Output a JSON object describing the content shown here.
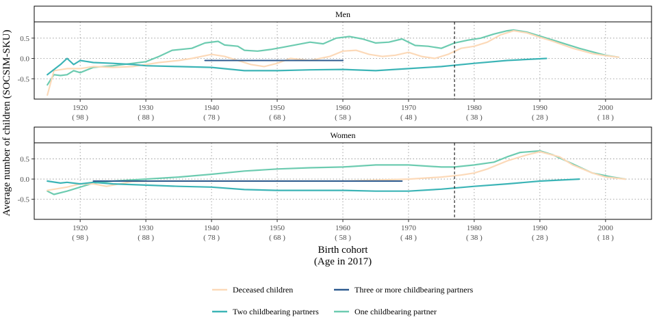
{
  "chart_data": {
    "type": "line",
    "ylabel": "Average number of children (SOCSIM-SKU)",
    "xlabel_line1": "Birth cohort",
    "xlabel_line2": "(Age in 2017)",
    "xlim": [
      1913,
      2007
    ],
    "ylim": [
      -1.0,
      0.9
    ],
    "yticks": [
      {
        "value": 0.5,
        "label": "0.5"
      },
      {
        "value": 0.0,
        "label": "0.0"
      },
      {
        "value": -0.5,
        "label": "-0.5"
      }
    ],
    "xticks": [
      {
        "value": 1920,
        "year": "1920",
        "age": "( 98 )"
      },
      {
        "value": 1930,
        "year": "1930",
        "age": "( 88 )"
      },
      {
        "value": 1940,
        "year": "1940",
        "age": "( 78 )"
      },
      {
        "value": 1950,
        "year": "1950",
        "age": "( 68 )"
      },
      {
        "value": 1960,
        "year": "1960",
        "age": "( 58 )"
      },
      {
        "value": 1970,
        "year": "1970",
        "age": "( 48 )"
      },
      {
        "value": 1980,
        "year": "1980",
        "age": "( 38 )"
      },
      {
        "value": 1990,
        "year": "1990",
        "age": "( 28 )"
      },
      {
        "value": 2000,
        "year": "2000",
        "age": "( 18 )"
      }
    ],
    "grid": true,
    "legend_position": "bottom",
    "legend": [
      {
        "key": "deceased",
        "label": "Deceased children",
        "color": "#fcd9b8"
      },
      {
        "key": "three",
        "label": "Three or more childbearing partners",
        "color": "#2c5a8f"
      },
      {
        "key": "two",
        "label": "Two childbearing partners",
        "color": "#3bb4b6"
      },
      {
        "key": "one",
        "label": "One childbearing partner",
        "color": "#6ccbb0"
      }
    ],
    "panels": [
      {
        "title": "Men",
        "vline": 1977,
        "series": [
          {
            "key": "one",
            "points": [
              [
                1915,
                -0.65
              ],
              [
                1916,
                -0.4
              ],
              [
                1917,
                -0.42
              ],
              [
                1918,
                -0.4
              ],
              [
                1919,
                -0.3
              ],
              [
                1920,
                -0.35
              ],
              [
                1922,
                -0.22
              ],
              [
                1925,
                -0.18
              ],
              [
                1928,
                -0.12
              ],
              [
                1930,
                -0.08
              ],
              [
                1932,
                0.05
              ],
              [
                1934,
                0.2
              ],
              [
                1937,
                0.25
              ],
              [
                1939,
                0.38
              ],
              [
                1941,
                0.42
              ],
              [
                1942,
                0.33
              ],
              [
                1944,
                0.3
              ],
              [
                1945,
                0.2
              ],
              [
                1947,
                0.18
              ],
              [
                1949,
                0.22
              ],
              [
                1951,
                0.28
              ],
              [
                1953,
                0.34
              ],
              [
                1955,
                0.4
              ],
              [
                1957,
                0.36
              ],
              [
                1959,
                0.5
              ],
              [
                1961,
                0.54
              ],
              [
                1963,
                0.48
              ],
              [
                1965,
                0.38
              ],
              [
                1967,
                0.4
              ],
              [
                1969,
                0.48
              ],
              [
                1971,
                0.32
              ],
              [
                1973,
                0.3
              ],
              [
                1975,
                0.25
              ],
              [
                1977,
                0.38
              ],
              [
                1979,
                0.45
              ],
              [
                1981,
                0.5
              ],
              [
                1983,
                0.6
              ],
              [
                1985,
                0.68
              ],
              [
                1986,
                0.7
              ],
              [
                1988,
                0.65
              ],
              [
                1990,
                0.55
              ],
              [
                1993,
                0.4
              ],
              [
                1996,
                0.25
              ],
              [
                1999,
                0.12
              ],
              [
                2000,
                0.08
              ],
              [
                2002,
                0.03
              ]
            ]
          },
          {
            "key": "deceased",
            "points": [
              [
                1915,
                -0.9
              ],
              [
                1916,
                -0.3
              ],
              [
                1918,
                -0.25
              ],
              [
                1920,
                -0.25
              ],
              [
                1922,
                -0.2
              ],
              [
                1925,
                -0.22
              ],
              [
                1928,
                -0.2
              ],
              [
                1930,
                -0.15
              ],
              [
                1932,
                -0.1
              ],
              [
                1935,
                -0.05
              ],
              [
                1937,
                0.0
              ],
              [
                1940,
                0.1
              ],
              [
                1942,
                0.05
              ],
              [
                1944,
                -0.05
              ],
              [
                1946,
                -0.15
              ],
              [
                1948,
                -0.2
              ],
              [
                1950,
                -0.12
              ],
              [
                1952,
                0.0
              ],
              [
                1955,
                -0.05
              ],
              [
                1958,
                0.05
              ],
              [
                1960,
                0.18
              ],
              [
                1962,
                0.2
              ],
              [
                1964,
                0.1
              ],
              [
                1966,
                0.05
              ],
              [
                1968,
                0.08
              ],
              [
                1970,
                0.15
              ],
              [
                1972,
                0.05
              ],
              [
                1974,
                0.0
              ],
              [
                1976,
                0.1
              ],
              [
                1978,
                0.25
              ],
              [
                1980,
                0.3
              ],
              [
                1982,
                0.4
              ],
              [
                1984,
                0.58
              ],
              [
                1986,
                0.68
              ],
              [
                1988,
                0.63
              ],
              [
                1990,
                0.52
              ],
              [
                1992,
                0.42
              ],
              [
                1995,
                0.25
              ],
              [
                1998,
                0.12
              ],
              [
                2000,
                0.07
              ],
              [
                2002,
                0.03
              ]
            ]
          },
          {
            "key": "two",
            "points": [
              [
                1915,
                -0.4
              ],
              [
                1917,
                -0.15
              ],
              [
                1918,
                0.0
              ],
              [
                1919,
                -0.15
              ],
              [
                1920,
                -0.05
              ],
              [
                1922,
                -0.1
              ],
              [
                1925,
                -0.12
              ],
              [
                1928,
                -0.15
              ],
              [
                1930,
                -0.18
              ],
              [
                1935,
                -0.2
              ],
              [
                1940,
                -0.22
              ],
              [
                1945,
                -0.3
              ],
              [
                1950,
                -0.3
              ],
              [
                1955,
                -0.28
              ],
              [
                1960,
                -0.27
              ],
              [
                1965,
                -0.3
              ],
              [
                1970,
                -0.25
              ],
              [
                1975,
                -0.2
              ],
              [
                1980,
                -0.12
              ],
              [
                1985,
                -0.05
              ],
              [
                1991,
                0.0
              ]
            ]
          },
          {
            "key": "three",
            "points": [
              [
                1939,
                -0.05
              ],
              [
                1960,
                -0.05
              ]
            ]
          }
        ]
      },
      {
        "title": "Women",
        "vline": 1977,
        "series": [
          {
            "key": "one",
            "points": [
              [
                1915,
                -0.3
              ],
              [
                1916,
                -0.38
              ],
              [
                1918,
                -0.3
              ],
              [
                1920,
                -0.2
              ],
              [
                1922,
                -0.1
              ],
              [
                1925,
                -0.05
              ],
              [
                1930,
                0.0
              ],
              [
                1935,
                0.05
              ],
              [
                1940,
                0.12
              ],
              [
                1945,
                0.2
              ],
              [
                1950,
                0.25
              ],
              [
                1955,
                0.28
              ],
              [
                1960,
                0.3
              ],
              [
                1965,
                0.35
              ],
              [
                1970,
                0.35
              ],
              [
                1975,
                0.3
              ],
              [
                1977,
                0.3
              ],
              [
                1980,
                0.35
              ],
              [
                1983,
                0.42
              ],
              [
                1985,
                0.55
              ],
              [
                1987,
                0.66
              ],
              [
                1990,
                0.7
              ],
              [
                1992,
                0.6
              ],
              [
                1994,
                0.45
              ],
              [
                1996,
                0.3
              ],
              [
                1998,
                0.15
              ],
              [
                2001,
                0.05
              ],
              [
                2003,
                0.0
              ]
            ]
          },
          {
            "key": "deceased",
            "points": [
              [
                1915,
                -0.28
              ],
              [
                1918,
                -0.2
              ],
              [
                1920,
                -0.12
              ],
              [
                1922,
                -0.12
              ],
              [
                1924,
                -0.18
              ],
              [
                1926,
                -0.12
              ],
              [
                1928,
                -0.06
              ],
              [
                1932,
                -0.05
              ],
              [
                1940,
                -0.05
              ],
              [
                1950,
                -0.05
              ],
              [
                1960,
                -0.05
              ],
              [
                1970,
                0.0
              ],
              [
                1975,
                0.05
              ],
              [
                1978,
                0.1
              ],
              [
                1980,
                0.15
              ],
              [
                1982,
                0.25
              ],
              [
                1985,
                0.45
              ],
              [
                1988,
                0.6
              ],
              [
                1990,
                0.68
              ],
              [
                1993,
                0.55
              ],
              [
                1995,
                0.35
              ],
              [
                1998,
                0.15
              ],
              [
                2000,
                0.05
              ],
              [
                2003,
                0.0
              ]
            ]
          },
          {
            "key": "two",
            "points": [
              [
                1915,
                -0.05
              ],
              [
                1917,
                -0.1
              ],
              [
                1918,
                -0.08
              ],
              [
                1920,
                -0.12
              ],
              [
                1922,
                -0.08
              ],
              [
                1925,
                -0.12
              ],
              [
                1930,
                -0.15
              ],
              [
                1935,
                -0.18
              ],
              [
                1940,
                -0.2
              ],
              [
                1945,
                -0.26
              ],
              [
                1950,
                -0.28
              ],
              [
                1955,
                -0.28
              ],
              [
                1960,
                -0.28
              ],
              [
                1965,
                -0.3
              ],
              [
                1970,
                -0.3
              ],
              [
                1975,
                -0.25
              ],
              [
                1980,
                -0.18
              ],
              [
                1985,
                -0.12
              ],
              [
                1990,
                -0.05
              ],
              [
                1996,
                0.0
              ]
            ]
          },
          {
            "key": "three",
            "points": [
              [
                1922,
                -0.05
              ],
              [
                1969,
                -0.05
              ]
            ]
          }
        ]
      }
    ]
  }
}
